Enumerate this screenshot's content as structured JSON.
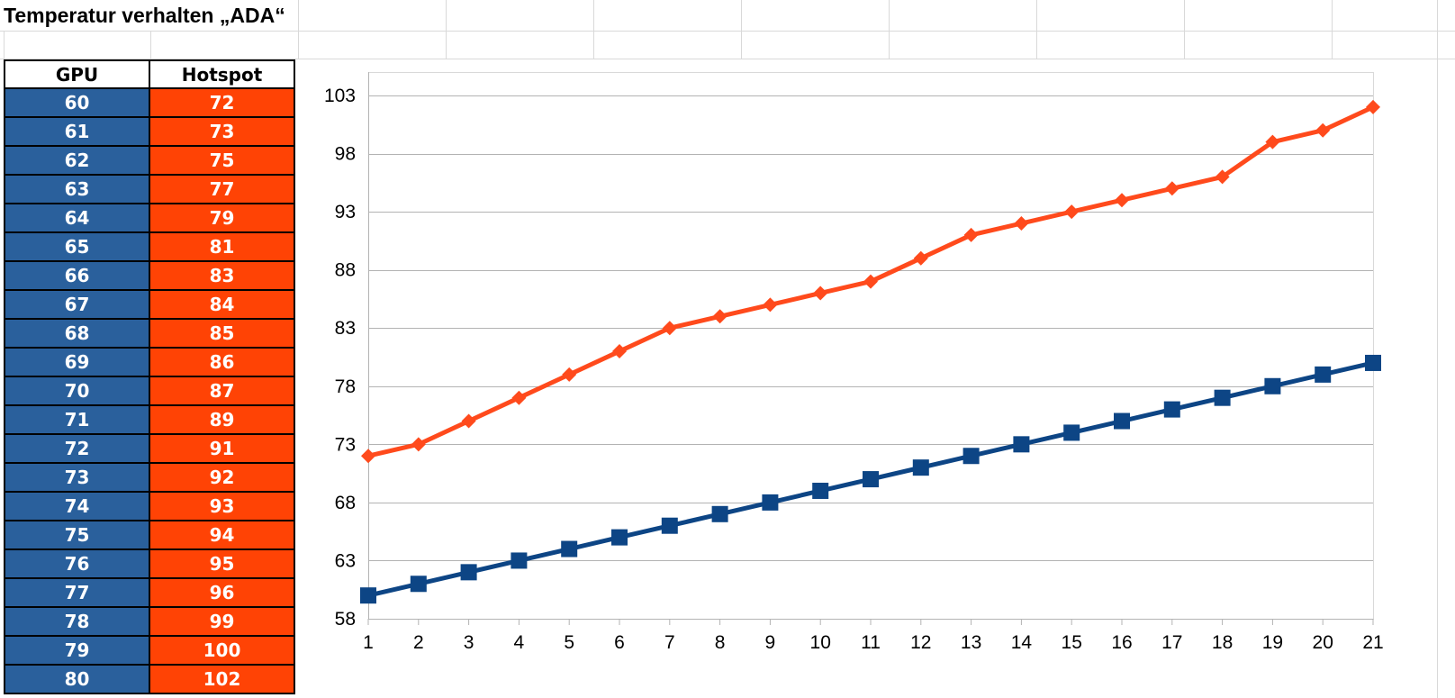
{
  "sheet": {
    "title": "Temperatur verhalten „ADA“"
  },
  "table": {
    "headers": {
      "gpu": "GPU",
      "hotspot": "Hotspot"
    },
    "rows": [
      {
        "gpu": "60",
        "hotspot": "72"
      },
      {
        "gpu": "61",
        "hotspot": "73"
      },
      {
        "gpu": "62",
        "hotspot": "75"
      },
      {
        "gpu": "63",
        "hotspot": "77"
      },
      {
        "gpu": "64",
        "hotspot": "79"
      },
      {
        "gpu": "65",
        "hotspot": "81"
      },
      {
        "gpu": "66",
        "hotspot": "83"
      },
      {
        "gpu": "67",
        "hotspot": "84"
      },
      {
        "gpu": "68",
        "hotspot": "85"
      },
      {
        "gpu": "69",
        "hotspot": "86"
      },
      {
        "gpu": "70",
        "hotspot": "87"
      },
      {
        "gpu": "71",
        "hotspot": "89"
      },
      {
        "gpu": "72",
        "hotspot": "91"
      },
      {
        "gpu": "73",
        "hotspot": "92"
      },
      {
        "gpu": "74",
        "hotspot": "93"
      },
      {
        "gpu": "75",
        "hotspot": "94"
      },
      {
        "gpu": "76",
        "hotspot": "95"
      },
      {
        "gpu": "77",
        "hotspot": "96"
      },
      {
        "gpu": "78",
        "hotspot": "99"
      },
      {
        "gpu": "79",
        "hotspot": "100"
      },
      {
        "gpu": "80",
        "hotspot": "102"
      }
    ]
  },
  "colors": {
    "gpu": "#2a609c",
    "gpu_line": "#0d4585",
    "hotspot": "#ff4305",
    "hotspot_line": "#ff4a1c"
  },
  "chart_data": {
    "type": "line",
    "title": "",
    "xlabel": "",
    "ylabel": "",
    "x": [
      1,
      2,
      3,
      4,
      5,
      6,
      7,
      8,
      9,
      10,
      11,
      12,
      13,
      14,
      15,
      16,
      17,
      18,
      19,
      20,
      21
    ],
    "ylim": [
      58,
      103
    ],
    "yticks": [
      58,
      63,
      68,
      73,
      78,
      83,
      88,
      93,
      98,
      103
    ],
    "grid": true,
    "legend": "none",
    "series": [
      {
        "key": "gpu",
        "marker": "square",
        "values": [
          60,
          61,
          62,
          63,
          64,
          65,
          66,
          67,
          68,
          69,
          70,
          71,
          72,
          73,
          74,
          75,
          76,
          77,
          78,
          79,
          80
        ]
      },
      {
        "key": "hotspot",
        "marker": "diamond",
        "values": [
          72,
          73,
          75,
          77,
          79,
          81,
          83,
          84,
          85,
          86,
          87,
          89,
          91,
          92,
          93,
          94,
          95,
          96,
          99,
          100,
          102
        ]
      }
    ]
  }
}
